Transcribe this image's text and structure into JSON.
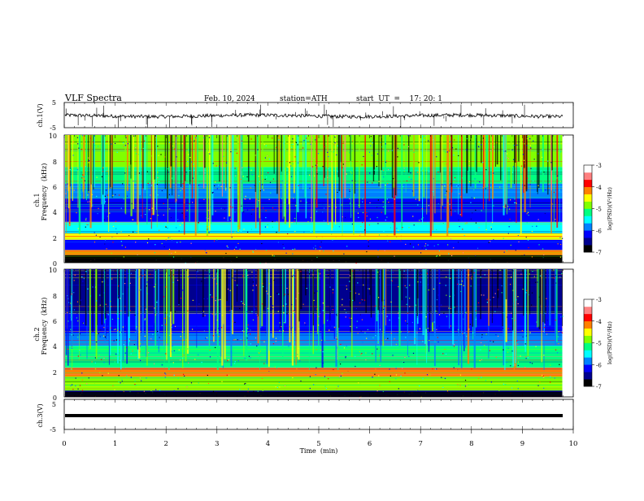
{
  "header": {
    "title": "VLF  Spectra",
    "date": "Feb. 10, 2024",
    "station": "station=ATH",
    "start": "start  UT  =    17: 20: 1"
  },
  "chart_data": [
    {
      "type": "line",
      "name": "ch1-waveform",
      "ylabel": "ch.1(V)",
      "ylim": [
        -5,
        5
      ],
      "yticks": [
        "5",
        "-5"
      ],
      "xlim": [
        0,
        10
      ],
      "baseline": -0.3,
      "color": "#000000"
    },
    {
      "type": "heatmap",
      "name": "ch1-spectrogram",
      "ylabel": [
        "ch.1",
        "Frequency  (kHz)"
      ],
      "ylim": [
        0,
        10
      ],
      "yticks": [
        "0",
        "2",
        "4",
        "6",
        "8",
        "10"
      ],
      "xlim": [
        0,
        9.8
      ],
      "colorbar": {
        "label": "log(PSD)(V²/Hz)",
        "ticks": [
          "-3",
          "-4",
          "-5",
          "-6",
          "-7"
        ],
        "range": [
          -7,
          -3
        ]
      },
      "bands": [
        {
          "from": 0,
          "to": 0.6,
          "level": -6.9
        },
        {
          "from": 0.6,
          "to": 1.0,
          "level": -4.2
        },
        {
          "from": 1.0,
          "to": 1.8,
          "level": -6.1
        },
        {
          "from": 1.8,
          "to": 2.3,
          "level": -4.3
        },
        {
          "from": 2.3,
          "to": 3.2,
          "level": -5.4
        },
        {
          "from": 3.2,
          "to": 5.0,
          "level": -6.4
        },
        {
          "from": 5.0,
          "to": 6.2,
          "level": -6.0
        },
        {
          "from": 6.2,
          "to": 7.5,
          "level": -5.2
        },
        {
          "from": 7.5,
          "to": 10.0,
          "level": -4.7
        }
      ]
    },
    {
      "type": "heatmap",
      "name": "ch2-spectrogram",
      "ylabel": [
        "ch.2",
        "Frequency  (kHz)"
      ],
      "ylim": [
        0,
        10
      ],
      "yticks": [
        "0",
        "2",
        "4",
        "6",
        "8",
        "10"
      ],
      "xlim": [
        0,
        9.8
      ],
      "colorbar": {
        "label": "log(PSD)(V²/Hz)",
        "ticks": [
          "-3",
          "-4",
          "-5",
          "-6",
          "-7"
        ],
        "range": [
          -7,
          -3
        ]
      },
      "bands": [
        {
          "from": 0,
          "to": 0.5,
          "level": -6.8
        },
        {
          "from": 0.5,
          "to": 1.6,
          "level": -5.0
        },
        {
          "from": 1.6,
          "to": 2.3,
          "level": -4.2
        },
        {
          "from": 2.3,
          "to": 4.0,
          "level": -5.1
        },
        {
          "from": 4.0,
          "to": 5.0,
          "level": -5.8
        },
        {
          "from": 5.0,
          "to": 6.5,
          "level": -6.3
        },
        {
          "from": 6.5,
          "to": 10.0,
          "level": -6.5
        }
      ]
    },
    {
      "type": "line",
      "name": "ch3-waveform",
      "ylabel": "ch.3(V)",
      "ylim": [
        -5,
        5
      ],
      "yticks": [
        "5",
        "-5"
      ],
      "xlim": [
        0,
        10
      ],
      "baseline": 0,
      "color": "#000000"
    }
  ],
  "time_axis": {
    "xlabel": "Time  (min)",
    "ticks": [
      "0",
      "1",
      "2",
      "3",
      "4",
      "5",
      "6",
      "7",
      "8",
      "9",
      "10"
    ],
    "range": [
      0,
      10
    ]
  },
  "colormap": [
    "#000000",
    "#00008f",
    "#0000ff",
    "#0080ff",
    "#00ffff",
    "#00ff80",
    "#80ff00",
    "#ffff00",
    "#ff8000",
    "#ff0000",
    "#ff8080",
    "#ffffff"
  ]
}
